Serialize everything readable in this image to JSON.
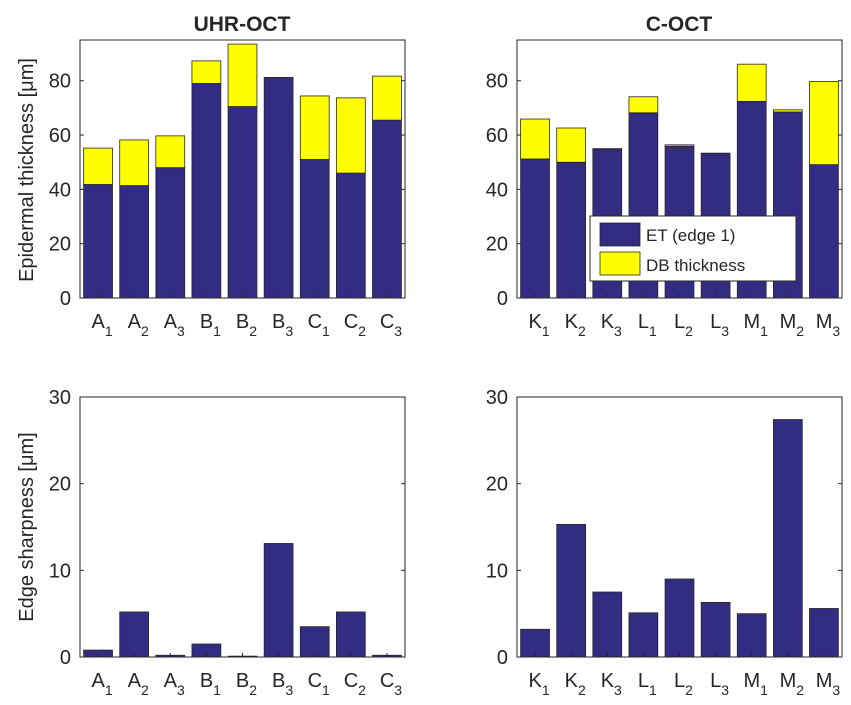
{
  "colors": {
    "et": "#332c83",
    "db": "#ffff00",
    "axis": "#262626"
  },
  "titles": {
    "uhr": "UHR-OCT",
    "coct": "C-OCT"
  },
  "ylabels": {
    "top": "Epidermal thickness [μm]",
    "bottom": "Edge sharpness [μm]"
  },
  "legend": {
    "placement": "inside-right",
    "entries": [
      {
        "label": "ET (edge 1)",
        "color": "#332c83"
      },
      {
        "label": "DB thickness",
        "color": "#ffff00"
      }
    ]
  },
  "chart_data": [
    {
      "type": "bar",
      "stacked": true,
      "title": "UHR-OCT",
      "ylabel": "Epidermal thickness [μm]",
      "ylim": [
        0,
        95
      ],
      "yticks": [
        0,
        20,
        40,
        60,
        80
      ],
      "categories": [
        {
          "main": "A",
          "sub": "1"
        },
        {
          "main": "A",
          "sub": "2"
        },
        {
          "main": "A",
          "sub": "3"
        },
        {
          "main": "B",
          "sub": "1"
        },
        {
          "main": "B",
          "sub": "2"
        },
        {
          "main": "B",
          "sub": "3"
        },
        {
          "main": "C",
          "sub": "1"
        },
        {
          "main": "C",
          "sub": "2"
        },
        {
          "main": "C",
          "sub": "3"
        }
      ],
      "series": [
        {
          "name": "ET (edge 1)",
          "color": "#332c83",
          "values": [
            41.8,
            41.4,
            48.0,
            79.0,
            70.5,
            81.2,
            51.0,
            46.0,
            65.5
          ]
        },
        {
          "name": "DB thickness",
          "color": "#ffff00",
          "values": [
            13.4,
            16.8,
            11.7,
            8.3,
            23.0,
            0.0,
            23.4,
            27.7,
            16.2
          ]
        }
      ]
    },
    {
      "type": "bar",
      "stacked": true,
      "title": "C-OCT",
      "ylabel": "",
      "ylim": [
        0,
        95
      ],
      "yticks": [
        0,
        20,
        40,
        60,
        80
      ],
      "categories": [
        {
          "main": "K",
          "sub": "1"
        },
        {
          "main": "K",
          "sub": "2"
        },
        {
          "main": "K",
          "sub": "3"
        },
        {
          "main": "L",
          "sub": "1"
        },
        {
          "main": "L",
          "sub": "2"
        },
        {
          "main": "L",
          "sub": "3"
        },
        {
          "main": "M",
          "sub": "1"
        },
        {
          "main": "M",
          "sub": "2"
        },
        {
          "main": "M",
          "sub": "3"
        }
      ],
      "series": [
        {
          "name": "ET (edge 1)",
          "color": "#332c83",
          "values": [
            51.2,
            50.0,
            54.8,
            68.2,
            55.9,
            53.3,
            72.4,
            68.5,
            49.1
          ]
        },
        {
          "name": "DB thickness",
          "color": "#ffff00",
          "values": [
            14.7,
            12.6,
            0.2,
            5.9,
            0.5,
            0.0,
            13.7,
            0.8,
            30.6
          ]
        }
      ]
    },
    {
      "type": "bar",
      "stacked": false,
      "title": "",
      "ylabel": "Edge sharpness [μm]",
      "ylim": [
        0,
        30
      ],
      "yticks": [
        0,
        10,
        20,
        30
      ],
      "categories": [
        {
          "main": "A",
          "sub": "1"
        },
        {
          "main": "A",
          "sub": "2"
        },
        {
          "main": "A",
          "sub": "3"
        },
        {
          "main": "B",
          "sub": "1"
        },
        {
          "main": "B",
          "sub": "2"
        },
        {
          "main": "B",
          "sub": "3"
        },
        {
          "main": "C",
          "sub": "1"
        },
        {
          "main": "C",
          "sub": "2"
        },
        {
          "main": "C",
          "sub": "3"
        }
      ],
      "series": [
        {
          "name": "",
          "color": "#332c83",
          "values": [
            0.8,
            5.2,
            0.2,
            1.5,
            0.1,
            13.1,
            3.5,
            5.2,
            0.2
          ]
        }
      ]
    },
    {
      "type": "bar",
      "stacked": false,
      "title": "",
      "ylabel": "",
      "ylim": [
        0,
        30
      ],
      "yticks": [
        0,
        10,
        20,
        30
      ],
      "categories": [
        {
          "main": "K",
          "sub": "1"
        },
        {
          "main": "K",
          "sub": "2"
        },
        {
          "main": "K",
          "sub": "3"
        },
        {
          "main": "L",
          "sub": "1"
        },
        {
          "main": "L",
          "sub": "2"
        },
        {
          "main": "L",
          "sub": "3"
        },
        {
          "main": "M",
          "sub": "1"
        },
        {
          "main": "M",
          "sub": "2"
        },
        {
          "main": "M",
          "sub": "3"
        }
      ],
      "series": [
        {
          "name": "",
          "color": "#332c83",
          "values": [
            3.2,
            15.3,
            7.5,
            5.1,
            9.0,
            6.3,
            5.0,
            27.4,
            5.6
          ]
        }
      ]
    }
  ]
}
